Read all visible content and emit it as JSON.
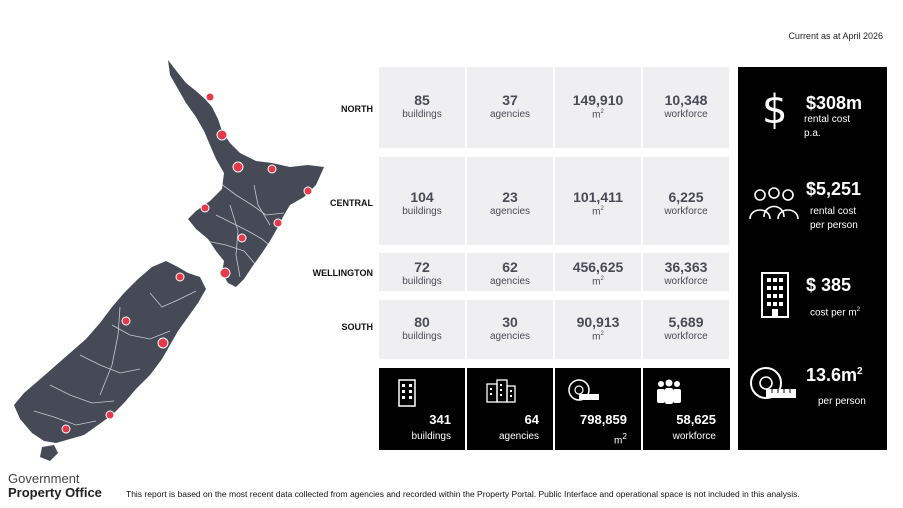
{
  "current_as_at": "Current as at April 2026",
  "regions": [
    {
      "name": "NORTH",
      "buildings": "85",
      "agencies": "37",
      "area": "149,910",
      "workforce": "10,348"
    },
    {
      "name": "CENTRAL",
      "buildings": "104",
      "agencies": "23",
      "area": "101,411",
      "workforce": "6,225"
    },
    {
      "name": "WELLINGTON",
      "buildings": "72",
      "agencies": "62",
      "area": "456,625",
      "workforce": "36,363"
    },
    {
      "name": "SOUTH",
      "buildings": "80",
      "agencies": "30",
      "area": "90,913",
      "workforce": "5,689"
    }
  ],
  "labels": {
    "buildings": "buildings",
    "agencies": "agencies",
    "area_unit": "m",
    "area_sup": "2",
    "workforce": "workforce"
  },
  "totals": {
    "buildings": "341",
    "agencies": "64",
    "area": "798,859",
    "workforce": "58,625"
  },
  "side_stats": {
    "rental_cost": "$308m",
    "rental_cost_label": "rental cost p.a.",
    "cost_per_person": "$5,251",
    "cost_per_person_label1": "rental cost",
    "cost_per_person_label2": "per person",
    "cost_per_m2": "$ 385",
    "cost_per_m2_label": "cost per m",
    "sqm_per_person": "13.6m",
    "sqm_per_person_sup": "2",
    "sqm_per_person_label": "per person"
  },
  "logo": {
    "line1": "Government",
    "line2": "Property Office"
  },
  "footnote": "This report is based on the most recent data collected from agencies and recorded within the Property Portal. Public Interface and operational space is not included in this analysis.",
  "colors": {
    "map": "#454a56",
    "marker": "#e23b4b",
    "cell": "#efeff1",
    "dark": "#000000"
  }
}
